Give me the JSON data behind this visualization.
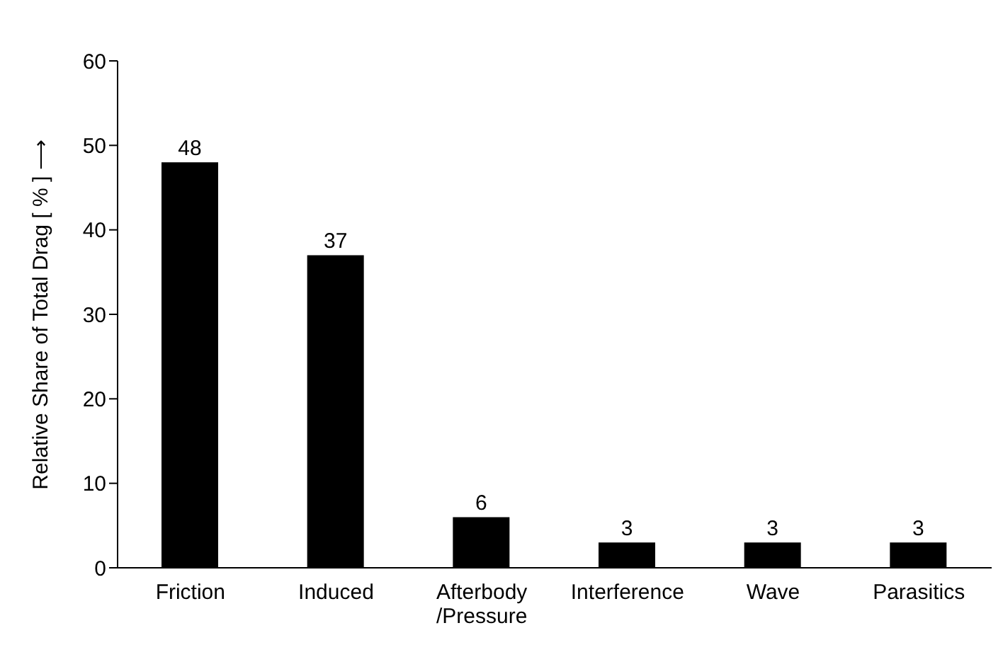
{
  "chart_data": {
    "type": "bar",
    "ylabel": "Relative Share of Total Drag [ % ] ⟶",
    "categories": [
      "Friction",
      "Induced",
      "Afterbody\n/Pressure",
      "Interference",
      "Wave",
      "Parasitics"
    ],
    "values": [
      48,
      37,
      6,
      3,
      3,
      3
    ],
    "color": "#000000",
    "ylim": [
      0,
      60
    ],
    "yticks": [
      0,
      10,
      20,
      30,
      40,
      50,
      60
    ],
    "grid": false,
    "data_labels": true
  }
}
